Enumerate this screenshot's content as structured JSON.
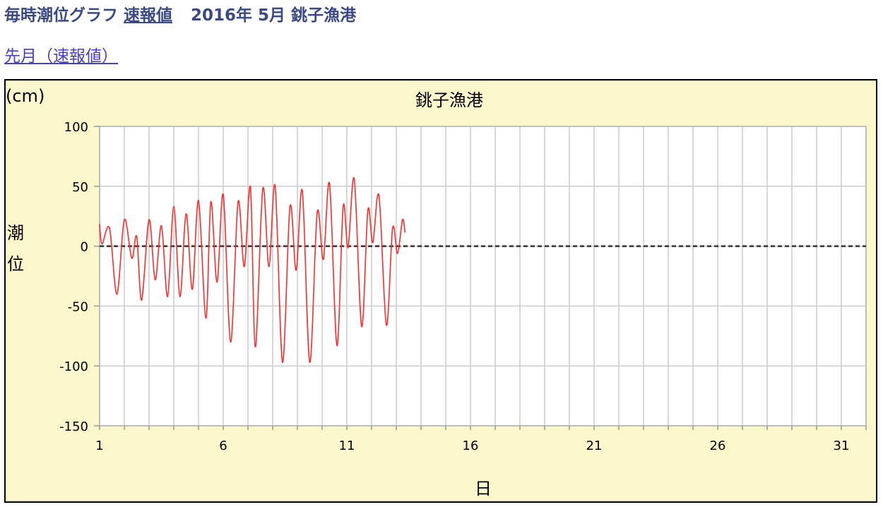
{
  "header": {
    "prefix": "毎時潮位グラフ",
    "link_label": "速報値",
    "date": "2016年 5月",
    "station": "銚子漁港"
  },
  "nav": {
    "prev_month_label": "先月（速報値）"
  },
  "colors": {
    "background": "#fdf7cc",
    "header_text": "#3b4a86",
    "link": "#4a3ec4",
    "series": "#ff2a2a",
    "zero_line": "#333333",
    "grid": "#cccccc"
  },
  "chart_data": {
    "type": "line",
    "title": "銚子漁港",
    "unit_label": "(cm)",
    "ylabel": "潮位",
    "xlabel": "日",
    "xlim": [
      1,
      32
    ],
    "ylim": [
      -150,
      100
    ],
    "xticks": [
      1,
      6,
      11,
      16,
      21,
      26,
      31
    ],
    "xtick_labels": [
      "1",
      "6",
      "11",
      "16",
      "21",
      "26",
      "31"
    ],
    "yticks": [
      100,
      50,
      0,
      -50,
      -100,
      -150
    ],
    "ytick_labels": [
      "100",
      "50",
      "0",
      "-50",
      "-100",
      "-150"
    ],
    "grid": true,
    "reference_line": {
      "y": 0,
      "style": "dashed"
    },
    "series": [
      {
        "points": [
          [
            1.0,
            18
          ],
          [
            1.1,
            2
          ],
          [
            1.4,
            15
          ],
          [
            1.7,
            -40
          ],
          [
            2.0,
            22
          ],
          [
            2.3,
            -10
          ],
          [
            2.5,
            8
          ],
          [
            2.7,
            -45
          ],
          [
            3.0,
            22
          ],
          [
            3.25,
            -28
          ],
          [
            3.5,
            17
          ],
          [
            3.75,
            -42
          ],
          [
            4.0,
            33
          ],
          [
            4.25,
            -42
          ],
          [
            4.5,
            27
          ],
          [
            4.75,
            -36
          ],
          [
            5.0,
            38
          ],
          [
            5.3,
            -60
          ],
          [
            5.5,
            37
          ],
          [
            5.75,
            -30
          ],
          [
            6.0,
            43
          ],
          [
            6.3,
            -80
          ],
          [
            6.6,
            37
          ],
          [
            6.85,
            -17
          ],
          [
            7.1,
            49
          ],
          [
            7.3,
            -84
          ],
          [
            7.6,
            48
          ],
          [
            7.85,
            -17
          ],
          [
            8.1,
            50
          ],
          [
            8.4,
            -97
          ],
          [
            8.7,
            33
          ],
          [
            8.95,
            -20
          ],
          [
            9.2,
            46
          ],
          [
            9.5,
            -97
          ],
          [
            9.8,
            28
          ],
          [
            10.05,
            -11
          ],
          [
            10.3,
            52
          ],
          [
            10.6,
            -83
          ],
          [
            10.85,
            33
          ],
          [
            11.05,
            -1
          ],
          [
            11.3,
            56
          ],
          [
            11.6,
            -67
          ],
          [
            11.85,
            30
          ],
          [
            12.05,
            3
          ],
          [
            12.3,
            42
          ],
          [
            12.6,
            -66
          ],
          [
            12.85,
            15
          ],
          [
            13.05,
            -6
          ],
          [
            13.25,
            22
          ],
          [
            13.35,
            12
          ]
        ]
      }
    ]
  }
}
